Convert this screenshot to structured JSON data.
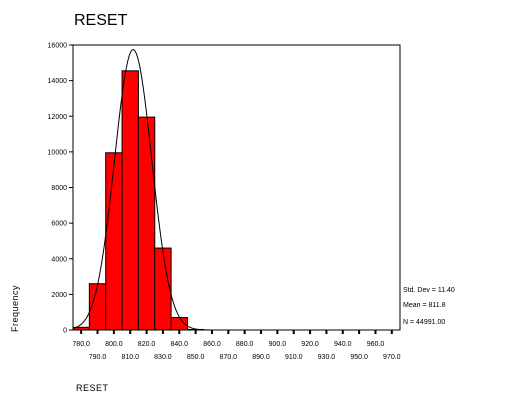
{
  "chart_data": {
    "type": "bar",
    "title": "RESET",
    "xlabel": "RESET",
    "ylabel": "Frequency",
    "bin_width": 10,
    "xlim": [
      775,
      975
    ],
    "ylim": [
      0,
      16000
    ],
    "bins": [
      {
        "center": 780,
        "value": 150
      },
      {
        "center": 790,
        "value": 2600
      },
      {
        "center": 800,
        "value": 9950
      },
      {
        "center": 810,
        "value": 14550
      },
      {
        "center": 820,
        "value": 11950
      },
      {
        "center": 830,
        "value": 4600
      },
      {
        "center": 840,
        "value": 700
      },
      {
        "center": 850,
        "value": 30
      }
    ],
    "x_ticks_top": [
      "780.0",
      "800.0",
      "820.0",
      "840.0",
      "860.0",
      "880.0",
      "900.0",
      "920.0",
      "940.0",
      "960.0"
    ],
    "x_ticks_bottom": [
      "790.0",
      "810.0",
      "830.0",
      "850.0",
      "870.0",
      "890.0",
      "910.0",
      "930.0",
      "950.0",
      "970.0"
    ],
    "y_ticks": [
      "0",
      "2000",
      "4000",
      "6000",
      "8000",
      "10000",
      "12000",
      "14000",
      "16000"
    ],
    "normal_curve": {
      "mean": 811.8,
      "std_dev": 11.4,
      "n": 44991
    },
    "bar_color": "#ff0000",
    "stats": {
      "std_dev": "Std. Dev = 11.40",
      "mean": "Mean = 811.8",
      "n": "N = 44991.00"
    },
    "grid": false
  }
}
